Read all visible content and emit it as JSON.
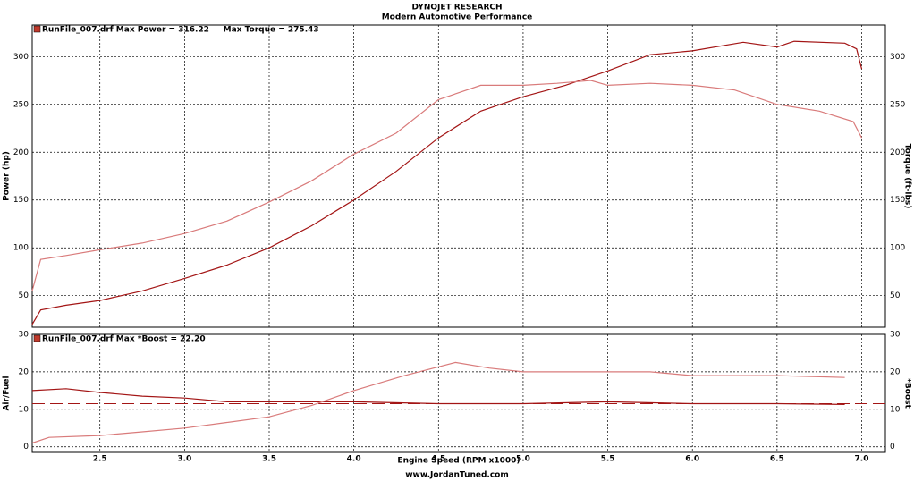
{
  "chart_data": [
    {
      "type": "line",
      "title": "DYNOJET RESEARCH",
      "subtitle": "Modern Automotive Performance",
      "legend_text": "RunFile_007.drf Max Power = 316.22     Max Torque = 275.43",
      "ylabel": "Power (hp)",
      "y2label": "Torque (ft-lbs)",
      "xlim": [
        2.1,
        7.14
      ],
      "ylim": [
        17,
        333
      ],
      "y2lim": [
        17,
        333
      ],
      "xticks": [
        2.5,
        {
          "value": 3,
          "label": "3.0"
        },
        3.5,
        {
          "value": 4,
          "label": "4.0"
        },
        4.5,
        {
          "value": 5,
          "label": "5.0"
        },
        5.5,
        {
          "value": 6,
          "label": "6.0"
        },
        6.5,
        {
          "value": 7,
          "label": "7.0"
        }
      ],
      "yticks": [
        50,
        100,
        150,
        200,
        250,
        300
      ],
      "y2ticks": [
        50,
        100,
        150,
        200,
        250,
        300
      ],
      "grid": true,
      "series": [
        {
          "name": "Power",
          "color": "#a31515",
          "x": [
            2.1,
            2.15,
            2.3,
            2.5,
            2.75,
            3.0,
            3.25,
            3.5,
            3.75,
            4.0,
            4.25,
            4.5,
            4.75,
            5.0,
            5.25,
            5.5,
            5.75,
            6.0,
            6.3,
            6.5,
            6.6,
            6.9,
            6.97,
            7.0
          ],
          "values": [
            20,
            35,
            40,
            45,
            55,
            68,
            82,
            100,
            123,
            150,
            180,
            215,
            243,
            258,
            270,
            285,
            302,
            306,
            315,
            310,
            316,
            314,
            308,
            287
          ]
        },
        {
          "name": "Torque",
          "color": "#d97b7b",
          "axis": "y2",
          "x": [
            2.1,
            2.15,
            2.3,
            2.5,
            2.75,
            3.0,
            3.25,
            3.5,
            3.75,
            4.0,
            4.25,
            4.5,
            4.75,
            5.0,
            5.2,
            5.4,
            5.5,
            5.75,
            6.0,
            6.25,
            6.5,
            6.75,
            6.95,
            7.0
          ],
          "values": [
            55,
            88,
            92,
            98,
            105,
            115,
            128,
            148,
            170,
            198,
            220,
            255,
            270,
            270,
            272,
            275,
            270,
            272,
            270,
            265,
            250,
            243,
            232,
            215
          ]
        }
      ]
    },
    {
      "type": "line",
      "legend_text": "RunFile_007.drf Max *Boost = 22.20",
      "ylabel": "Air/Fuel",
      "y2label": "*Boost",
      "xlabel": "Engine Speed (RPM x1000)",
      "xlim": [
        2.1,
        7.14
      ],
      "ylim": [
        -1.5,
        30
      ],
      "y2lim": [
        -1.5,
        30
      ],
      "xticks": [
        2.5,
        {
          "value": 3,
          "label": "3.0"
        },
        3.5,
        {
          "value": 4,
          "label": "4.0"
        },
        4.5,
        {
          "value": 5,
          "label": "5.0"
        },
        5.5,
        {
          "value": 6,
          "label": "6.0"
        },
        6.5,
        {
          "value": 7,
          "label": "7.0"
        }
      ],
      "yticks": [
        0,
        10,
        20,
        30
      ],
      "y2ticks": [
        0,
        10,
        20,
        30
      ],
      "grid": true,
      "reference_line": 11.5,
      "series": [
        {
          "name": "Air/Fuel",
          "color": "#a31515",
          "x": [
            2.1,
            2.3,
            2.5,
            2.75,
            3.0,
            3.25,
            3.5,
            4.0,
            4.5,
            5.0,
            5.5,
            6.0,
            6.5,
            6.9
          ],
          "values": [
            15,
            15.5,
            14.5,
            13.5,
            13,
            12,
            12,
            12,
            11.5,
            11.5,
            12,
            11.5,
            11.5,
            11.3
          ]
        },
        {
          "name": "*Boost",
          "color": "#d97b7b",
          "axis": "y2",
          "x": [
            2.1,
            2.2,
            2.5,
            2.75,
            3.0,
            3.25,
            3.5,
            3.75,
            4.0,
            4.3,
            4.6,
            4.8,
            5.0,
            5.25,
            5.5,
            5.75,
            6.0,
            6.5,
            6.9
          ],
          "values": [
            1,
            2.5,
            3,
            4,
            5,
            6.5,
            8,
            11,
            15,
            19,
            22.5,
            21,
            20,
            20,
            20,
            20,
            19,
            19,
            18.5
          ]
        }
      ]
    }
  ],
  "footer": "www.JordanTuned.com"
}
